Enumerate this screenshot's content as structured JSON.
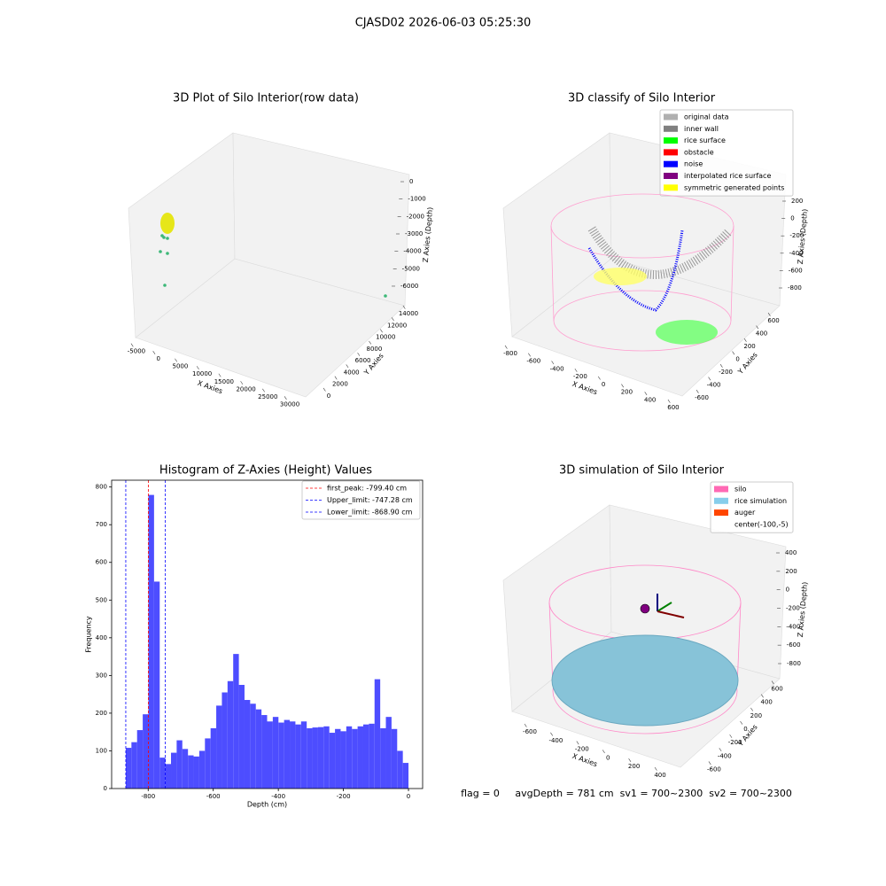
{
  "title": "CJASD02 2026-06-03 05:25:30",
  "footer": "flag = 0     avgDepth = 781 cm  sv1 = 700~2300  sv2 = 700~2300",
  "chart_data": [
    {
      "type": "scatter3d",
      "title": "3D Plot of Silo Interior(row data)",
      "xlabel": "X Axies",
      "ylabel": "Y Axies",
      "zlabel": "Z Axies (Depth)",
      "xlim": [
        -6000,
        31000
      ],
      "ylim": [
        -1000,
        15000
      ],
      "zlim": [
        -6500,
        500
      ],
      "xticks": [
        -5000,
        0,
        5000,
        10000,
        15000,
        20000,
        25000,
        30000
      ],
      "yticks": [
        0,
        2000,
        4000,
        6000,
        8000,
        10000,
        12000,
        14000
      ],
      "zticks": [
        -6000,
        -5000,
        -4000,
        -3000,
        -2000,
        -1000,
        0
      ]
    },
    {
      "type": "scatter3d",
      "title": "3D classify of Silo Interior",
      "xlabel": "X Axies",
      "ylabel": "Y Axies",
      "zlabel": "Z Axies (Depth)",
      "xlim": [
        -900,
        700
      ],
      "ylim": [
        -700,
        700
      ],
      "zlim": [
        -900,
        300
      ],
      "xticks": [
        -800,
        -600,
        -400,
        -200,
        0,
        200,
        400,
        600
      ],
      "yticks": [
        -600,
        -400,
        -200,
        0,
        200,
        400,
        600
      ],
      "zticks": [
        -800,
        -600,
        -400,
        -200,
        0,
        200
      ],
      "legend": [
        {
          "name": "original data",
          "color": "#b0b0b0"
        },
        {
          "name": "inner wall",
          "color": "#808080"
        },
        {
          "name": "rice surface",
          "color": "#00ff00"
        },
        {
          "name": "obstacle",
          "color": "#ff0000"
        },
        {
          "name": "noise",
          "color": "#0000ff"
        },
        {
          "name": "interpolated rice surface",
          "color": "#800080"
        },
        {
          "name": "symmetric generated points",
          "color": "#ffff00"
        }
      ]
    },
    {
      "type": "histogram",
      "title": "Histogram of Z-Axies (Height) Values",
      "xlabel": "Depth (cm)",
      "ylabel": "Frequency",
      "color": "#4d4dff",
      "bins": [
        -868.9,
        -851.52,
        -834.14,
        -816.77,
        -799.4,
        -782.01,
        -764.63,
        -747.25,
        -729.88,
        -712.5,
        -695.12,
        -677.74,
        -660.36,
        -642.99,
        -625.61,
        -608.23,
        -590.85,
        -573.47,
        -556.1,
        -538.72,
        -521.34,
        -503.96,
        -486.58,
        -469.21,
        -451.83,
        -434.45,
        -417.07,
        -399.69,
        -382.32,
        -364.94,
        -347.56,
        -330.18,
        -312.8,
        -295.43,
        -278.05,
        -260.67,
        -243.29,
        -225.91,
        -208.54,
        -191.16,
        -173.78,
        -156.4,
        -139.02,
        -121.65,
        -104.27,
        -86.89,
        -69.51,
        -52.13,
        -34.76,
        -17.38,
        0
      ],
      "values": [
        108,
        123,
        155,
        197,
        779,
        549,
        82,
        65,
        95,
        128,
        105,
        88,
        85,
        100,
        133,
        160,
        220,
        255,
        285,
        357,
        275,
        235,
        225,
        210,
        195,
        178,
        190,
        175,
        182,
        178,
        170,
        178,
        160,
        162,
        163,
        165,
        148,
        158,
        152,
        165,
        158,
        165,
        170,
        172,
        290,
        160,
        190,
        158,
        100,
        68
      ],
      "xlim": [
        -912.35,
        43.45
      ],
      "ylim": [
        0,
        818
      ],
      "xticks": [
        -800,
        -600,
        -400,
        -200,
        0
      ],
      "yticks": [
        0,
        100,
        200,
        300,
        400,
        500,
        600,
        700,
        800
      ],
      "reference_lines": [
        {
          "name": "first_peak: -799.40 cm",
          "value": -799.4,
          "color": "#ff0000"
        },
        {
          "name": "Upper_limit: -747.28 cm",
          "value": -747.28,
          "color": "#0000ff"
        },
        {
          "name": "Lower_limit: -868.90 cm",
          "value": -868.9,
          "color": "#0000ff"
        }
      ]
    },
    {
      "type": "surface3d",
      "title": "3D simulation of Silo Interior",
      "xlabel": "X Axies",
      "ylabel": "Y Axies",
      "zlabel": "Z Axies (Depth)",
      "xlim": [
        -700,
        500
      ],
      "ylim": [
        -700,
        700
      ],
      "zlim": [
        -900,
        500
      ],
      "xticks": [
        -600,
        -400,
        -200,
        0,
        200,
        400
      ],
      "yticks": [
        -600,
        -400,
        -200,
        0,
        200,
        400,
        600
      ],
      "zticks": [
        -800,
        -600,
        -400,
        -200,
        0,
        200,
        400
      ],
      "legend": [
        {
          "name": "silo",
          "color": "#ff69b4"
        },
        {
          "name": "rice simulation",
          "color": "#87ceeb"
        },
        {
          "name": "auger",
          "color": "#ff4500"
        },
        {
          "name": "center(-100,-5)"
        }
      ]
    }
  ]
}
